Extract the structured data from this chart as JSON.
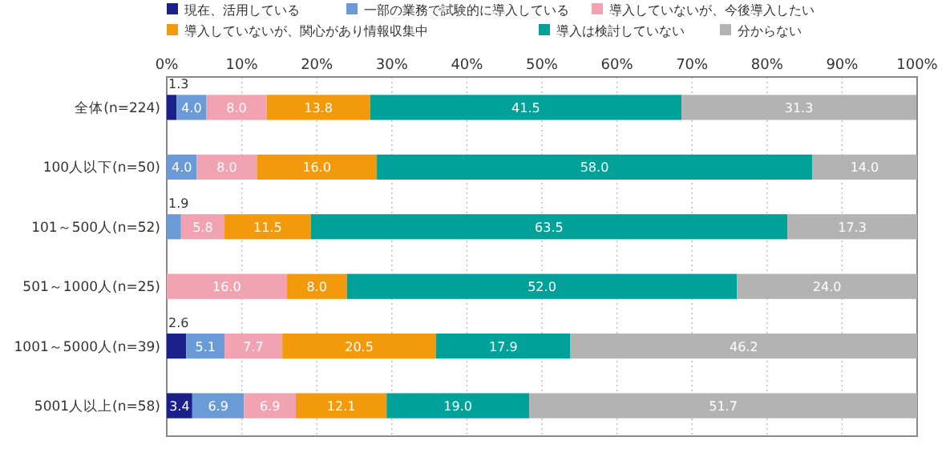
{
  "chart_data": {
    "type": "bar",
    "orientation": "horizontal",
    "stacked": true,
    "legend": "top",
    "grid": "x",
    "categories": [
      "全体(n=224)",
      "100人以下(n=50)",
      "101～500人(n=52)",
      "501～1000人(n=25)",
      "1001～5000人(n=39)",
      "5001人以上(n=58)"
    ],
    "xlim": [
      0,
      100
    ],
    "xticks": [
      {
        "value": 0,
        "label": "0%"
      },
      {
        "value": 10,
        "label": "10%"
      },
      {
        "value": 20,
        "label": "20%"
      },
      {
        "value": 30,
        "label": "30%"
      },
      {
        "value": 40,
        "label": "40%"
      },
      {
        "value": 50,
        "label": "50%"
      },
      {
        "value": 60,
        "label": "60%"
      },
      {
        "value": 70,
        "label": "70%"
      },
      {
        "value": 80,
        "label": "80%"
      },
      {
        "value": 90,
        "label": "90%"
      },
      {
        "value": 100,
        "label": "100%"
      }
    ],
    "series": [
      {
        "name": "現在、活用している",
        "color": "#1b1f8a",
        "values": [
          1.3,
          null,
          null,
          null,
          2.6,
          3.4
        ],
        "value_labels": [
          "1.3",
          null,
          null,
          null,
          "2.6",
          "3.4"
        ]
      },
      {
        "name": "一部の業務で試験的に導入している",
        "color": "#6b9bd6",
        "values": [
          4.0,
          4.0,
          1.9,
          null,
          5.1,
          6.9
        ],
        "value_labels": [
          "4.0",
          "4.0",
          "1.9",
          null,
          "5.1",
          "6.9"
        ]
      },
      {
        "name": "導入していないが、今後導入したい",
        "color": "#f2a3b1",
        "values": [
          8.0,
          8.0,
          5.8,
          16.0,
          7.7,
          6.9
        ],
        "value_labels": [
          "8.0",
          "8.0",
          "5.8",
          "16.0",
          "7.7",
          "6.9"
        ]
      },
      {
        "name": "導入していないが、関心があり情報収集中",
        "color": "#f39a0c",
        "values": [
          13.8,
          16.0,
          11.5,
          8.0,
          20.5,
          12.1
        ],
        "value_labels": [
          "13.8",
          "16.0",
          "11.5",
          "8.0",
          "20.5",
          "12.1"
        ]
      },
      {
        "name": "導入は検討していない",
        "color": "#00a199",
        "values": [
          41.5,
          58.0,
          63.5,
          52.0,
          17.9,
          19.0
        ],
        "value_labels": [
          "41.5",
          "58.0",
          "63.5",
          "52.0",
          "17.9",
          "19.0"
        ]
      },
      {
        "name": "分からない",
        "color": "#b3b3b3",
        "values": [
          31.3,
          14.0,
          17.3,
          24.0,
          46.2,
          51.7
        ],
        "value_labels": [
          "31.3",
          "14.0",
          "17.3",
          "24.0",
          "46.2",
          "51.7"
        ]
      }
    ]
  }
}
